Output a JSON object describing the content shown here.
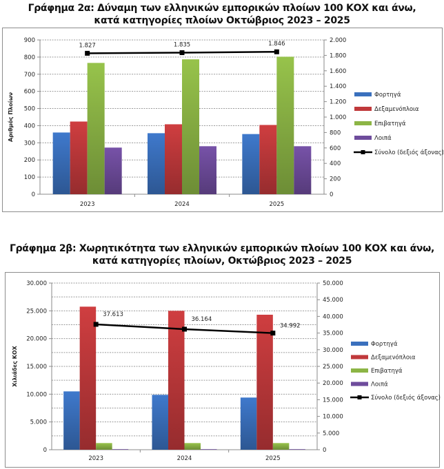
{
  "chart_data": [
    {
      "type": "bar",
      "title_line1": "Γράφημα 2α: Δύναμη των ελληνικών εμπορικών πλοίων 100 ΚΟΧ και άνω,",
      "title_line2": "κατά κατηγορίες πλοίων Οκτώβριος 2023 – 2025",
      "xlabel": "",
      "ylabel": "Αριθμός Πλοίων",
      "categories": [
        "2023",
        "2024",
        "2025"
      ],
      "ylim": [
        0,
        900
      ],
      "yticks": [
        "0",
        "100",
        "200",
        "300",
        "400",
        "500",
        "600",
        "700",
        "800",
        "900"
      ],
      "y2lim": [
        0,
        2000
      ],
      "y2ticks": [
        "0",
        "200",
        "400",
        "600",
        "800",
        "1.000",
        "1.200",
        "1.400",
        "1.600",
        "1.800",
        "2.000"
      ],
      "grid": true,
      "legend_position": "right",
      "series": [
        {
          "name": "Φορτηγά",
          "color": "#3a70bd",
          "values": [
            360,
            356,
            351
          ]
        },
        {
          "name": "Δεξαμενόπλοια",
          "color": "#c0393b",
          "values": [
            424,
            408,
            404
          ]
        },
        {
          "name": "Επιβατηγά",
          "color": "#8cb545",
          "values": [
            766,
            787,
            802
          ]
        },
        {
          "name": "Λοιπά",
          "color": "#6e4c9c",
          "values": [
            272,
            280,
            280
          ]
        }
      ],
      "line_series": {
        "name": "Σύνολο (δεξιός άξονας)",
        "axis": "right",
        "color": "#000000",
        "values": [
          1827,
          1835,
          1846
        ],
        "labels": [
          "1.827",
          "1.835",
          "1.846"
        ]
      }
    },
    {
      "type": "bar",
      "title_line1": "Γράφημα 2β: Χωρητικότητα των ελληνικών εμπορικών πλοίων 100 ΚΟΧ και άνω,",
      "title_line2": "κατά κατηγορίες πλοίων, Οκτώβριος 2023 – 2025",
      "xlabel": "",
      "ylabel": "Χιλιάδες ΚΟΧ",
      "categories": [
        "2023",
        "2024",
        "2025"
      ],
      "ylim": [
        0,
        30000
      ],
      "yticks": [
        "0",
        "5.000",
        "10.000",
        "15.000",
        "20.000",
        "25.000",
        "30.000"
      ],
      "y2lim": [
        0,
        50000
      ],
      "y2ticks": [
        "0",
        "5.000",
        "10.000",
        "15.000",
        "20.000",
        "25.000",
        "30.000",
        "35.000",
        "40.000",
        "45.000",
        "50.000"
      ],
      "grid": true,
      "legend_position": "right",
      "series": [
        {
          "name": "Φορτηγά",
          "color": "#3a70bd",
          "values": [
            10500,
            9880,
            9390
          ]
        },
        {
          "name": "Δεξαμενόπλοια",
          "color": "#c0393b",
          "values": [
            25750,
            25000,
            24300
          ]
        },
        {
          "name": "Επιβατηγά",
          "color": "#8cb545",
          "values": [
            1200,
            1200,
            1200
          ]
        },
        {
          "name": "Λοιπά",
          "color": "#6e4c9c",
          "values": [
            100,
            100,
            100
          ]
        }
      ],
      "line_series": {
        "name": "Σύνολο (δεξιός άξονας)",
        "axis": "right",
        "color": "#000000",
        "values": [
          37613,
          36164,
          34992
        ],
        "labels": [
          "37.613",
          "36.164",
          "34.992"
        ]
      }
    }
  ]
}
